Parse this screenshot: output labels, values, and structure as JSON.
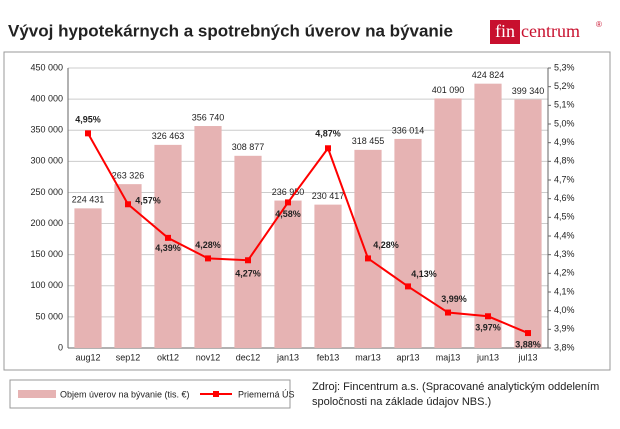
{
  "title": "Vývoj hypotekárnych a spotrebných úverov na bývanie",
  "logo": {
    "part1": "fin",
    "part2": "centrum",
    "mark": "®"
  },
  "source": [
    "Zdroj: Fincentrum a.s. (Spracované analytickým oddelením",
    "spoločnosti na základe údajov NBS.)"
  ],
  "chart_data": {
    "type": "bar",
    "categories": [
      "aug12",
      "sep12",
      "okt12",
      "nov12",
      "dec12",
      "jan13",
      "feb13",
      "mar13",
      "apr13",
      "maj13",
      "jun13",
      "jul13"
    ],
    "series": [
      {
        "name": "Objem úverov na bývanie  (tis. €)",
        "color": "#e6b3b3",
        "values": [
          224431,
          263326,
          326463,
          356740,
          308877,
          236950,
          230417,
          318455,
          336014,
          401090,
          424824,
          399340
        ],
        "value_labels": [
          "224 431",
          "263 326",
          "326 463",
          "356 740",
          "308 877",
          "236 950",
          "230 417",
          "318 455",
          "336 014",
          "401 090",
          "424 824",
          "399 340"
        ]
      },
      {
        "name": "Priemerná ÚS",
        "color": "#ff0000",
        "type": "line",
        "axis": "y2",
        "values": [
          4.95,
          4.57,
          4.39,
          4.28,
          4.27,
          4.58,
          4.87,
          4.28,
          4.13,
          3.99,
          3.97,
          3.88
        ],
        "value_labels": [
          "4,95%",
          "4,57%",
          "4,39%",
          "4,28%",
          "4,27%",
          "4,58%",
          "4,87%",
          "4,28%",
          "4,13%",
          "3,99%",
          "3,97%",
          "3,88%"
        ]
      }
    ],
    "ylim": [
      0,
      450000
    ],
    "yticks": [
      0,
      {
        "value": 50000,
        "label": "50 000"
      },
      {
        "value": 100000,
        "label": "100 000"
      },
      {
        "value": 150000,
        "label": "150 000"
      },
      {
        "value": 200000,
        "label": "200 000"
      },
      {
        "value": 250000,
        "label": "250 000"
      },
      {
        "value": 300000,
        "label": "300 000"
      },
      {
        "value": 350000,
        "label": "350 000"
      },
      {
        "value": 400000,
        "label": "400 000"
      },
      {
        "value": 450000,
        "label": "450 000"
      }
    ],
    "y2lim": [
      3.8,
      5.3
    ],
    "y2ticks": [
      {
        "value": 3.8,
        "label": "3,8%"
      },
      {
        "value": 3.9,
        "label": "3,9%"
      },
      {
        "value": 4.0,
        "label": "4,0%"
      },
      {
        "value": 4.1,
        "label": "4,1%"
      },
      {
        "value": 4.2,
        "label": "4,2%"
      },
      {
        "value": 4.3,
        "label": "4,3%"
      },
      {
        "value": 4.4,
        "label": "4,4%"
      },
      {
        "value": 4.5,
        "label": "4,5%"
      },
      {
        "value": 4.6,
        "label": "4,6%"
      },
      {
        "value": 4.7,
        "label": "4,7%"
      },
      {
        "value": 4.8,
        "label": "4,8%"
      },
      {
        "value": 4.9,
        "label": "4,9%"
      },
      {
        "value": 5.0,
        "label": "5,0%"
      },
      {
        "value": 5.1,
        "label": "5,1%"
      },
      {
        "value": 5.2,
        "label": "5,2%"
      },
      {
        "value": 5.3,
        "label": "5,3%"
      }
    ],
    "grid": true
  }
}
